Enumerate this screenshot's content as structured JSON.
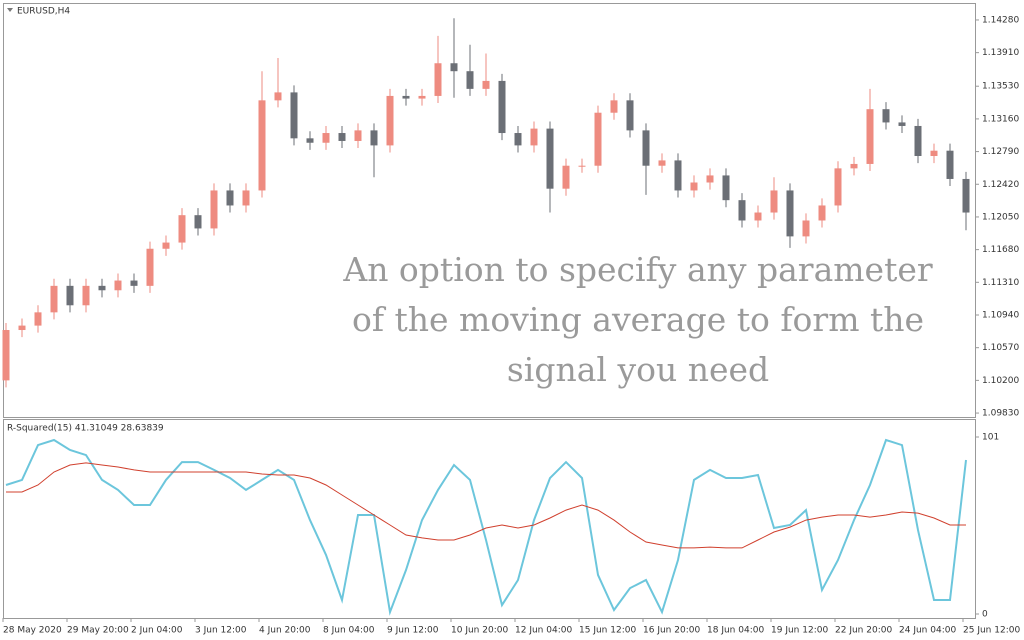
{
  "chart_data": [
    {
      "type": "candlestick",
      "title": "EURUSD,H4",
      "annotation": [
        "An option to specify any parameter",
        "of the moving average to form the",
        "signal you need"
      ],
      "categories": [
        "28 May 2020",
        null,
        null,
        null,
        "29 May 20:00",
        null,
        null,
        null,
        "2 Jun 04:00",
        null,
        null,
        null,
        "3 Jun 12:00",
        null,
        null,
        null,
        "4 Jun 20:00",
        null,
        null,
        null,
        "8 Jun 04:00",
        null,
        null,
        null,
        "9 Jun 12:00",
        null,
        null,
        null,
        "10 Jun 20:00",
        null,
        null,
        null,
        "12 Jun 04:00",
        null,
        null,
        null,
        "15 Jun 12:00",
        null,
        null,
        null,
        "16 Jun 20:00",
        null,
        null,
        null,
        "18 Jun 04:00",
        null,
        null,
        null,
        "19 Jun 12:00",
        null,
        null,
        null,
        "22 Jun 20:00",
        null,
        null,
        null,
        "24 Jun 04:00",
        null,
        null,
        null,
        "25 Jun 12:00"
      ],
      "open": [
        1.102,
        1.1077,
        1.1082,
        1.1097,
        1.1127,
        1.1105,
        1.1127,
        1.1122,
        1.1133,
        1.1127,
        1.1169,
        1.1176,
        1.1207,
        1.1192,
        1.1235,
        1.1218,
        1.1235,
        1.1337,
        1.1346,
        1.1294,
        1.1289,
        1.13,
        1.1291,
        1.1303,
        1.1286,
        1.1342,
        1.1339,
        1.1342,
        1.1379,
        1.137,
        1.135,
        1.1359,
        1.13,
        1.1286,
        1.1305,
        1.1237,
        1.1263,
        1.1263,
        1.1323,
        1.1337,
        1.1303,
        1.1263,
        1.1269,
        1.1235,
        1.1244,
        1.1252,
        1.1224,
        1.1201,
        1.121,
        1.1235,
        1.1183,
        1.1201,
        1.1218,
        1.126,
        1.1265,
        1.1327,
        1.1312,
        1.1308,
        1.1274,
        1.128,
        1.1248
      ],
      "high": [
        1.1085,
        1.109,
        1.1105,
        1.1135,
        1.1135,
        1.1135,
        1.1135,
        1.1141,
        1.1141,
        1.1177,
        1.1184,
        1.1215,
        1.1215,
        1.1243,
        1.1243,
        1.1243,
        1.137,
        1.1385,
        1.1354,
        1.1302,
        1.1308,
        1.1308,
        1.1311,
        1.1311,
        1.135,
        1.135,
        1.135,
        1.141,
        1.143,
        1.14,
        1.139,
        1.1367,
        1.1308,
        1.1313,
        1.1313,
        1.1271,
        1.1271,
        1.1331,
        1.1345,
        1.1345,
        1.1311,
        1.1277,
        1.1277,
        1.1252,
        1.126,
        1.126,
        1.1232,
        1.1218,
        1.125,
        1.1243,
        1.1209,
        1.1226,
        1.1268,
        1.1273,
        1.135,
        1.1335,
        1.132,
        1.1316,
        1.1288,
        1.1288,
        1.1256
      ],
      "low": [
        1.1012,
        1.1069,
        1.1074,
        1.1089,
        1.1097,
        1.1097,
        1.1114,
        1.1114,
        1.1119,
        1.1119,
        1.1161,
        1.1168,
        1.1184,
        1.1184,
        1.121,
        1.121,
        1.1227,
        1.1329,
        1.1286,
        1.1281,
        1.1281,
        1.1283,
        1.1283,
        1.125,
        1.1278,
        1.1331,
        1.1331,
        1.1334,
        1.134,
        1.1342,
        1.1342,
        1.1292,
        1.1278,
        1.1278,
        1.121,
        1.1229,
        1.1255,
        1.1255,
        1.1315,
        1.1295,
        1.123,
        1.1255,
        1.1227,
        1.1227,
        1.1236,
        1.1216,
        1.1193,
        1.1193,
        1.1202,
        1.117,
        1.1175,
        1.1193,
        1.121,
        1.1252,
        1.1257,
        1.1304,
        1.13,
        1.1266,
        1.1266,
        1.124,
        1.119
      ],
      "close": [
        1.1077,
        1.1082,
        1.1097,
        1.1127,
        1.1105,
        1.1127,
        1.1122,
        1.1133,
        1.1127,
        1.1169,
        1.1176,
        1.1207,
        1.1192,
        1.1235,
        1.1218,
        1.1235,
        1.1337,
        1.1346,
        1.1294,
        1.1289,
        1.13,
        1.1291,
        1.1303,
        1.1286,
        1.1342,
        1.1339,
        1.1342,
        1.1379,
        1.137,
        1.135,
        1.1359,
        1.13,
        1.1286,
        1.1305,
        1.1237,
        1.1263,
        1.1263,
        1.1323,
        1.1337,
        1.1303,
        1.1263,
        1.1269,
        1.1235,
        1.1244,
        1.1252,
        1.1224,
        1.1201,
        1.121,
        1.1235,
        1.1183,
        1.1201,
        1.1218,
        1.126,
        1.1265,
        1.1327,
        1.1312,
        1.1308,
        1.1274,
        1.128,
        1.1248,
        1.121
      ],
      "up_color": "#ee8b80",
      "down_color": "#6b6f76",
      "ylim": [
        1.09774,
        1.14472
      ],
      "yticks": [
        {
          "value": 1.1428,
          "label": "1.14280"
        },
        {
          "value": 1.1391,
          "label": "1.13910"
        },
        {
          "value": 1.1353,
          "label": "1.13530"
        },
        {
          "value": 1.1316,
          "label": "1.13160"
        },
        {
          "value": 1.1279,
          "label": "1.12790"
        },
        {
          "value": 1.1242,
          "label": "1.12420"
        },
        {
          "value": 1.1205,
          "label": "1.12050"
        },
        {
          "value": 1.1168,
          "label": "1.11680"
        },
        {
          "value": 1.1131,
          "label": "1.11310"
        },
        {
          "value": 1.1094,
          "label": "1.10940"
        },
        {
          "value": 1.1057,
          "label": "1.10570"
        },
        {
          "value": 1.102,
          "label": "1.10200"
        },
        {
          "value": 1.0983,
          "label": "1.09830"
        }
      ]
    },
    {
      "type": "line",
      "title": "R-Squared(15) 41.31049 28.63839",
      "series": [
        {
          "color": "#6cc6dc",
          "values": [
            73.6,
            76.5,
            96.4,
            99.3,
            93.6,
            90.7,
            76.5,
            70.8,
            62.2,
            62.2,
            76.5,
            86.7,
            86.7,
            82.2,
            77.6,
            70.8,
            76.5,
            82.2,
            76.5,
            53.6,
            33.7,
            8.0,
            56.5,
            56.5,
            1.1,
            25.1,
            53.6,
            70.8,
            85.0,
            76.5,
            42.2,
            5.1,
            19.4,
            53.6,
            77.6,
            86.7,
            77.6,
            22.3,
            2.3,
            14.8,
            19.4,
            1.1,
            30.8,
            76.5,
            82.2,
            77.6,
            77.6,
            79.3,
            49.1,
            50.8,
            59.3,
            13.7,
            30.8,
            53.6,
            73.6,
            99.3,
            96.4,
            47.9,
            8.0,
            8.0,
            87.9
          ]
        },
        {
          "color": "#d0402e",
          "values": [
            69.6,
            69.6,
            73.6,
            81.0,
            85.0,
            86.2,
            85.0,
            83.9,
            82.2,
            81.0,
            81.0,
            81.0,
            81.0,
            81.0,
            81.0,
            81.0,
            79.9,
            79.3,
            79.3,
            77.6,
            73.6,
            67.9,
            62.2,
            56.5,
            50.8,
            45.1,
            43.4,
            42.2,
            42.2,
            45.1,
            49.1,
            50.8,
            49.1,
            50.8,
            54.8,
            59.3,
            62.2,
            59.3,
            53.6,
            46.8,
            41.1,
            39.4,
            37.7,
            37.7,
            38.2,
            37.7,
            37.7,
            42.2,
            46.8,
            49.6,
            53.6,
            55.3,
            56.5,
            56.5,
            55.3,
            56.5,
            58.2,
            57.6,
            54.8,
            50.8,
            50.8
          ]
        }
      ],
      "ylim": [
        0,
        101
      ],
      "yticks": [
        101,
        0
      ]
    }
  ]
}
